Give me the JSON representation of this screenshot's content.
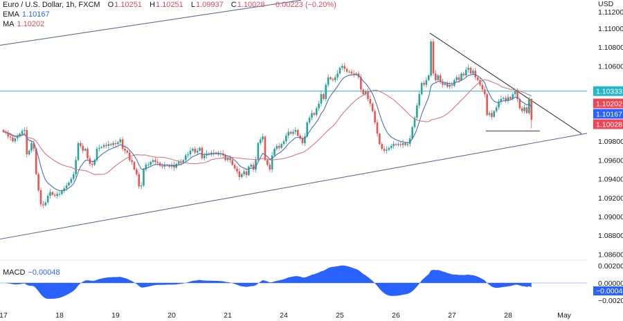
{
  "header": {
    "symbol": "Euro / U.S. Dollar, 1h, FXCM",
    "o_label": "O",
    "o": "1.10251",
    "h_label": "H",
    "h": "1.10251",
    "l_label": "L",
    "l": "1.09937",
    "c_label": "C",
    "c": "1.10028",
    "change": "−0.00223 (−0.20%)",
    "ema_label": "EMA",
    "ema": "1.10167",
    "ma_label": "MA",
    "ma": "1.10202",
    "macd_label": "MACD",
    "macd": "−0.00048"
  },
  "colors": {
    "up": "#26a69a",
    "down": "#ef5350",
    "ema": "#4a6fb3",
    "ma": "#d9777f",
    "macd_fill": "#2962ff",
    "horizontal_line": "#26b6c6",
    "channel": "#5b6e94",
    "trendline": "#333333"
  },
  "chart_data": [
    {
      "type": "candlestick",
      "currency": "USD",
      "timeframe": "1h",
      "y_ticks": [
        "1.11200",
        "1.11000",
        "1.10800",
        "1.10600",
        "1.09800",
        "1.09600",
        "1.09400",
        "1.09200",
        "1.09000",
        "1.08800",
        "1.08600"
      ],
      "x_ticks": [
        "17",
        "18",
        "19",
        "20",
        "21",
        "24",
        "25",
        "26",
        "27",
        "28",
        "May"
      ],
      "close": [
        1.099,
        1.0989,
        1.0985,
        1.0984,
        1.098,
        1.0983,
        1.0985,
        1.0988,
        1.0991,
        1.0992,
        1.0966,
        1.097,
        1.0978,
        1.0972,
        1.0945,
        1.0928,
        1.0913,
        1.0912,
        1.0915,
        1.0922,
        1.0926,
        1.0923,
        1.0922,
        1.0924,
        1.0924,
        1.0927,
        1.093,
        1.0933,
        1.0936,
        1.094,
        1.0945,
        1.096,
        1.0978,
        1.0975,
        1.097,
        1.0972,
        1.0962,
        1.0956,
        1.0955,
        1.096,
        1.0972,
        1.0973,
        1.0974,
        1.0976,
        1.0975,
        1.0977,
        1.0976,
        1.0978,
        1.0977,
        1.0979,
        1.0982,
        1.0972,
        1.097,
        1.0968,
        1.096,
        1.0958,
        1.095,
        1.0945,
        1.0932,
        1.0933,
        1.095,
        1.0955,
        1.0955,
        1.0958,
        1.096,
        1.0958,
        1.0957,
        1.0954,
        1.0953,
        1.0955,
        1.0954,
        1.0953,
        1.0955,
        1.0952,
        1.0956,
        1.0958,
        1.0957,
        1.096,
        1.0965,
        1.0966,
        1.097,
        1.0972,
        1.0968,
        1.097,
        1.0973,
        1.0962,
        1.0965,
        1.0967,
        1.0966,
        1.0968,
        1.0967,
        1.0968,
        1.0966,
        1.0967,
        1.0965,
        1.096,
        1.0962,
        1.096,
        1.0955,
        1.0951,
        1.0948,
        1.0942,
        1.0945,
        1.0948,
        1.0944,
        1.0953,
        1.0955,
        1.095,
        1.096,
        1.0978,
        1.0982,
        1.0985,
        1.096,
        1.0955,
        1.095,
        1.0965,
        1.0972,
        1.0975,
        1.0973,
        1.0977,
        1.098,
        1.0986,
        1.099,
        1.0988,
        1.099,
        1.0992,
        1.0986,
        1.0983,
        1.0978,
        1.0985,
        1.1,
        1.1005,
        1.101,
        1.1008,
        1.1015,
        1.102,
        1.103,
        1.1025,
        1.104,
        1.1048,
        1.1046,
        1.1045,
        1.1048,
        1.1052,
        1.1058,
        1.106,
        1.1057,
        1.1054,
        1.1054,
        1.1052,
        1.1051,
        1.1052,
        1.1048,
        1.1035,
        1.103,
        1.1033,
        1.1025,
        1.102,
        1.1012,
        1.1,
        1.0988,
        1.0977,
        1.0972,
        1.097,
        1.0971,
        1.0973,
        1.0975,
        1.0977,
        1.0976,
        1.0977,
        1.0976,
        1.0978,
        1.0976,
        1.0977,
        1.0983,
        1.0995,
        1.1005,
        1.1018,
        1.103,
        1.1042,
        1.104,
        1.1045,
        1.105,
        1.1086,
        1.1052,
        1.1045,
        1.105,
        1.1043,
        1.104,
        1.1042,
        1.1038,
        1.104,
        1.1039,
        1.1045,
        1.1048,
        1.1045,
        1.1052,
        1.105,
        1.1056,
        1.1058,
        1.1052,
        1.1055,
        1.1048,
        1.1045,
        1.104,
        1.1035,
        1.103,
        1.1008,
        1.101,
        1.1006,
        1.1012,
        1.1016,
        1.1022,
        1.1025,
        1.1026,
        1.1023,
        1.1027,
        1.1025,
        1.103,
        1.1033,
        1.1025,
        1.1015,
        1.1012,
        1.1016,
        1.101,
        1.10251,
        1.10028
      ],
      "last_candle": {
        "open": 1.10251,
        "high": 1.10251,
        "low": 1.09937,
        "close": 1.10028
      },
      "horizontal_level": 1.10333,
      "price_badges": [
        {
          "value": "1.10333",
          "color": "#26b6c6"
        },
        {
          "value": "1.10202",
          "color": "#ef4655"
        },
        {
          "value": "1.10167",
          "color": "#2962ff"
        },
        {
          "value": "1.10028",
          "color": "#ef4655"
        }
      ],
      "drawings": {
        "channel_upper": [
          [
            -1.5,
            1.1082
          ],
          [
            127.4,
            1.113
          ]
        ],
        "channel_lower": [
          [
            -1.5,
            1.0876
          ],
          [
            253.3,
            1.099
          ]
        ],
        "resistance": [
          [
            182.5,
            1.1095
          ],
          [
            247.4,
            1.0988
          ]
        ],
        "support": [
          [
            206.5,
            1.0991
          ],
          [
            229.6,
            1.0991
          ]
        ]
      }
    },
    {
      "type": "area",
      "name": "MACD",
      "y_ticks": [
        "0.00200",
        "0.00000",
        "−0.00200"
      ],
      "ylim": [
        -0.0028,
        0.0024
      ],
      "badge": {
        "value": "−0.00048",
        "color": "#2962ff"
      }
    }
  ]
}
